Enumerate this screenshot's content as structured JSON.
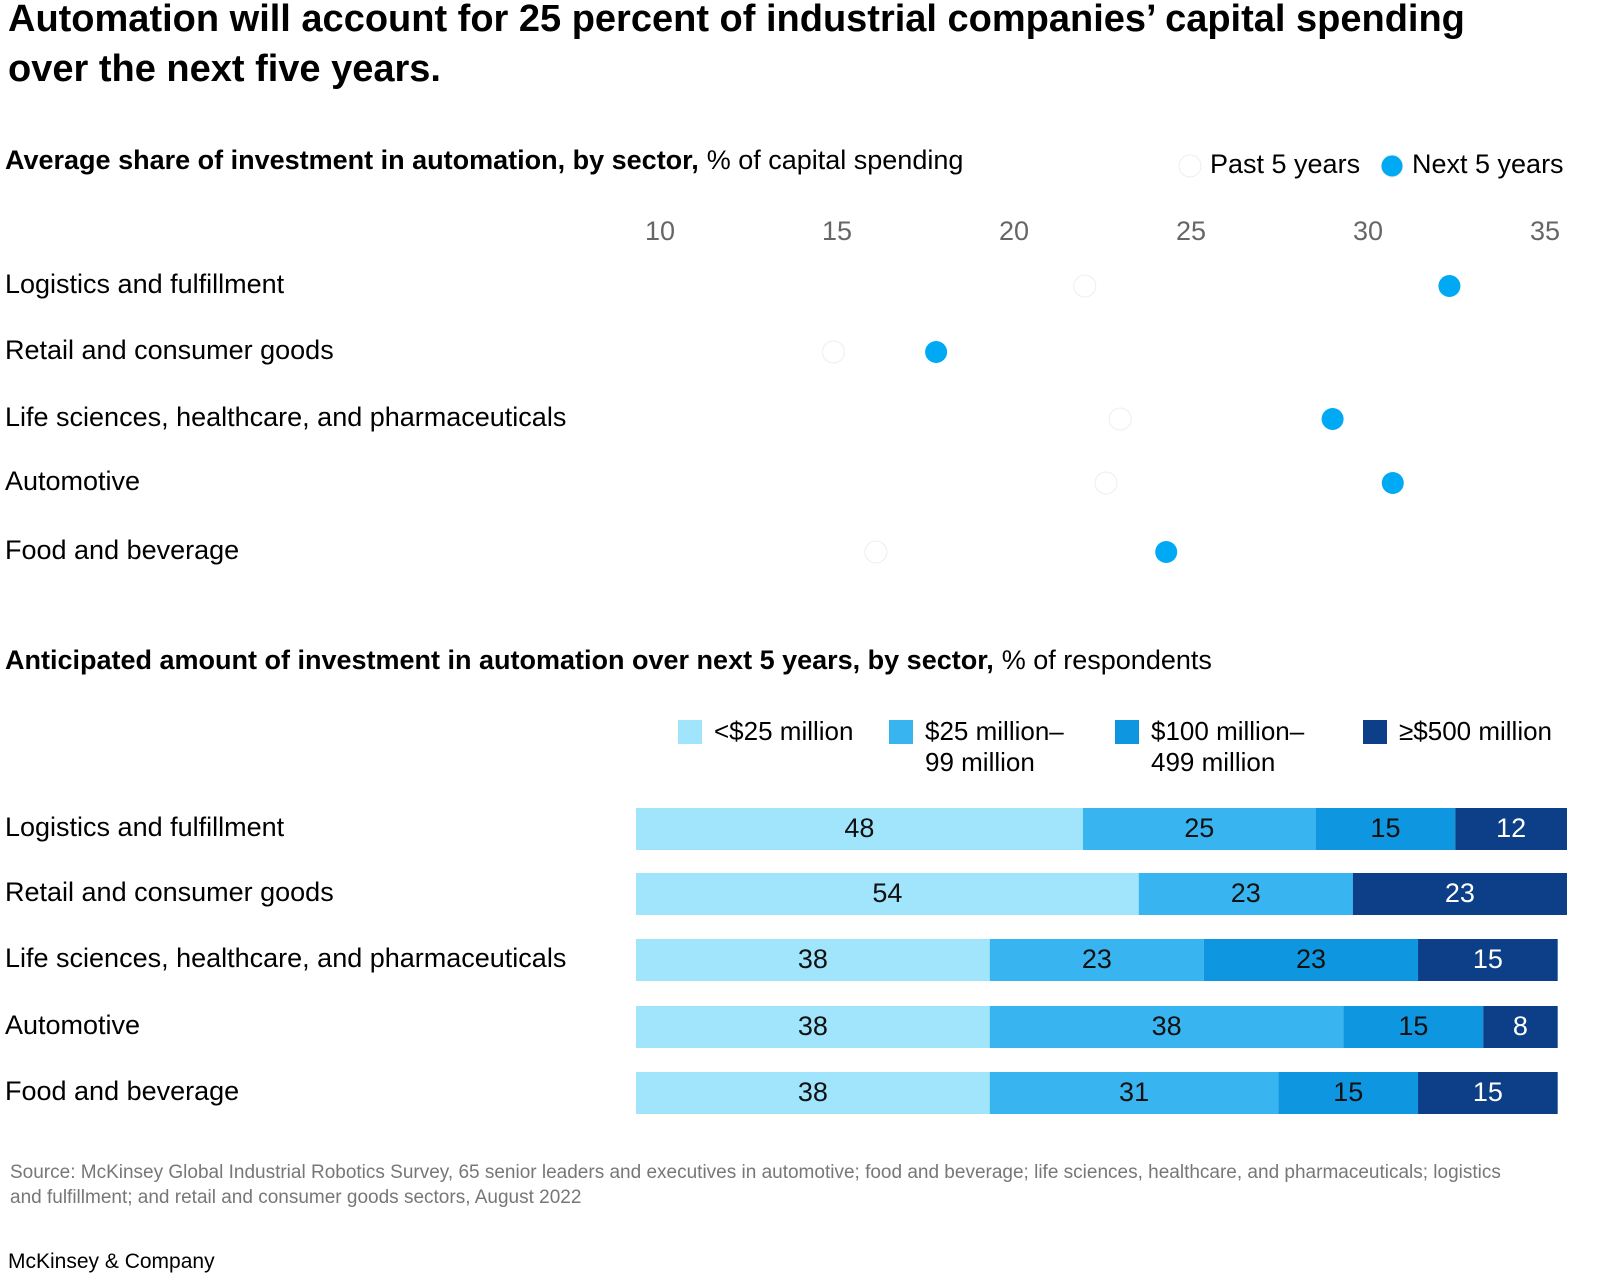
{
  "title": "Automation will account for 25 percent of industrial companies’ capital spending over the next five years.",
  "chart_data": [
    {
      "type": "dot",
      "title": "Average share of investment in automation, by sector,",
      "unit": "% of capital spending",
      "categories": [
        "Logistics and fulfillment",
        "Retail and consumer goods",
        "Life sciences, healthcare, and pharmaceuticals",
        "Automotive",
        "Food and beverage"
      ],
      "series": [
        {
          "name": "Past 5 years",
          "color": "#ffffff",
          "values": [
            22.0,
            14.9,
            23.0,
            22.6,
            16.1
          ]
        },
        {
          "name": "Next 5 years",
          "color": "#00a9f4",
          "values": [
            32.3,
            17.8,
            29.0,
            30.7,
            24.3
          ]
        }
      ],
      "xlim": [
        10,
        35
      ],
      "xticks": [
        10,
        15,
        20,
        25,
        30,
        35
      ]
    },
    {
      "type": "stacked-bar",
      "title": "Anticipated amount of investment in automation over next 5 years, by sector,",
      "unit": "% of respondents",
      "categories": [
        "Logistics and fulfillment",
        "Retail and consumer goods",
        "Life sciences, healthcare, and pharmaceuticals",
        "Automotive",
        "Food and beverage"
      ],
      "series": [
        {
          "name": "<$25 million",
          "color": "#a0e5fc",
          "values": [
            48,
            54,
            38,
            38,
            38
          ]
        },
        {
          "name": "$25 million–99 million",
          "color": "#38b4f1",
          "values": [
            25,
            23,
            23,
            38,
            31
          ]
        },
        {
          "name": "$100 million–499 million",
          "color": "#0f96e0",
          "values": [
            15,
            null,
            23,
            15,
            15
          ]
        },
        {
          "name": "≥$500 million",
          "color": "#0c3f87",
          "values": [
            12,
            23,
            15,
            8,
            15
          ]
        }
      ],
      "xlim": [
        0,
        100
      ]
    }
  ],
  "source": "Source: McKinsey Global Industrial Robotics Survey, 65 senior leaders and executives in automotive; food and beverage; life sciences, healthcare, and pharmaceuticals; logistics and fulfillment; and retail and consumer goods sectors, August 2022",
  "footer": "McKinsey & Company"
}
